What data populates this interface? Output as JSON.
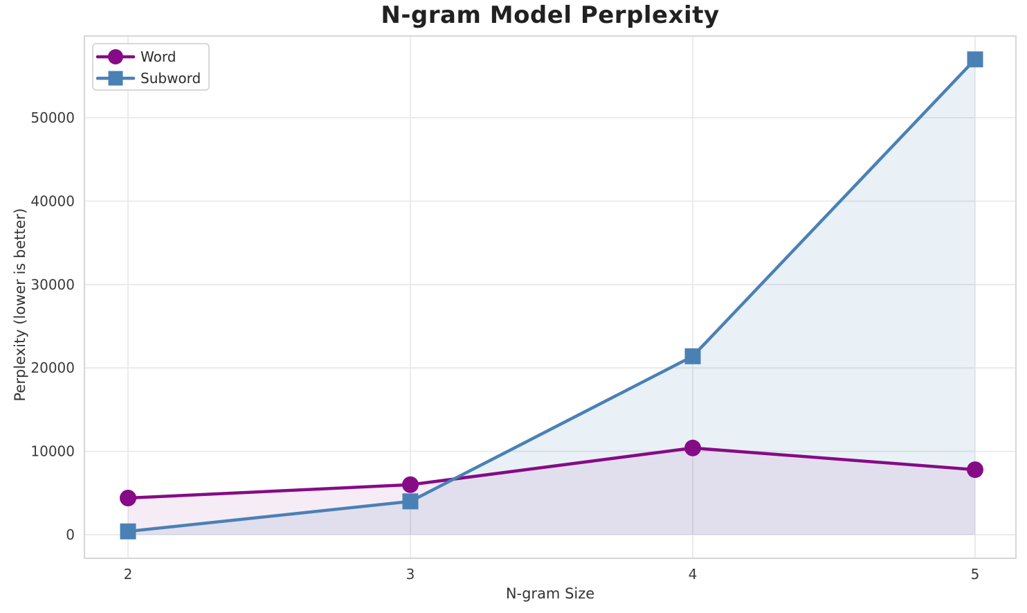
{
  "chart_data": {
    "type": "line",
    "title": "N-gram Model Perplexity",
    "xlabel": "N-gram Size",
    "ylabel": "Perplexity (lower is better)",
    "x": [
      2,
      3,
      4,
      5
    ],
    "xtick_labels": [
      "2",
      "3",
      "4",
      "5"
    ],
    "yticks": [
      0,
      10000,
      20000,
      30000,
      40000,
      50000
    ],
    "ytick_labels": [
      "0",
      "10000",
      "20000",
      "30000",
      "40000",
      "50000"
    ],
    "xlim": [
      1.85,
      5.15
    ],
    "ylim": [
      -2800,
      59800
    ],
    "grid": true,
    "area_fill": true,
    "legend": {
      "position": "upper left",
      "entries": [
        "Word",
        "Subword"
      ]
    },
    "series": [
      {
        "name": "Word",
        "marker": "circle",
        "color": "#860b86",
        "fill_color": "rgba(134, 11, 134, 0.08)",
        "values": [
          4400,
          6000,
          10400,
          7800
        ]
      },
      {
        "name": "Subword",
        "marker": "square",
        "color": "#4a81b4",
        "fill_color": "rgba(74, 129, 180, 0.12)",
        "values": [
          400,
          4000,
          21400,
          57000
        ]
      }
    ],
    "styles": {
      "background": "#ffffff",
      "grid_color": "#e9e9e9",
      "spine_color": "#d6d6d6",
      "tick_label_color": "#3a3a3a",
      "title_color": "#212121",
      "axis_label_color": "#333333",
      "legend_text_color": "#2b2b2b",
      "legend_border_color": "#cccccc"
    }
  }
}
